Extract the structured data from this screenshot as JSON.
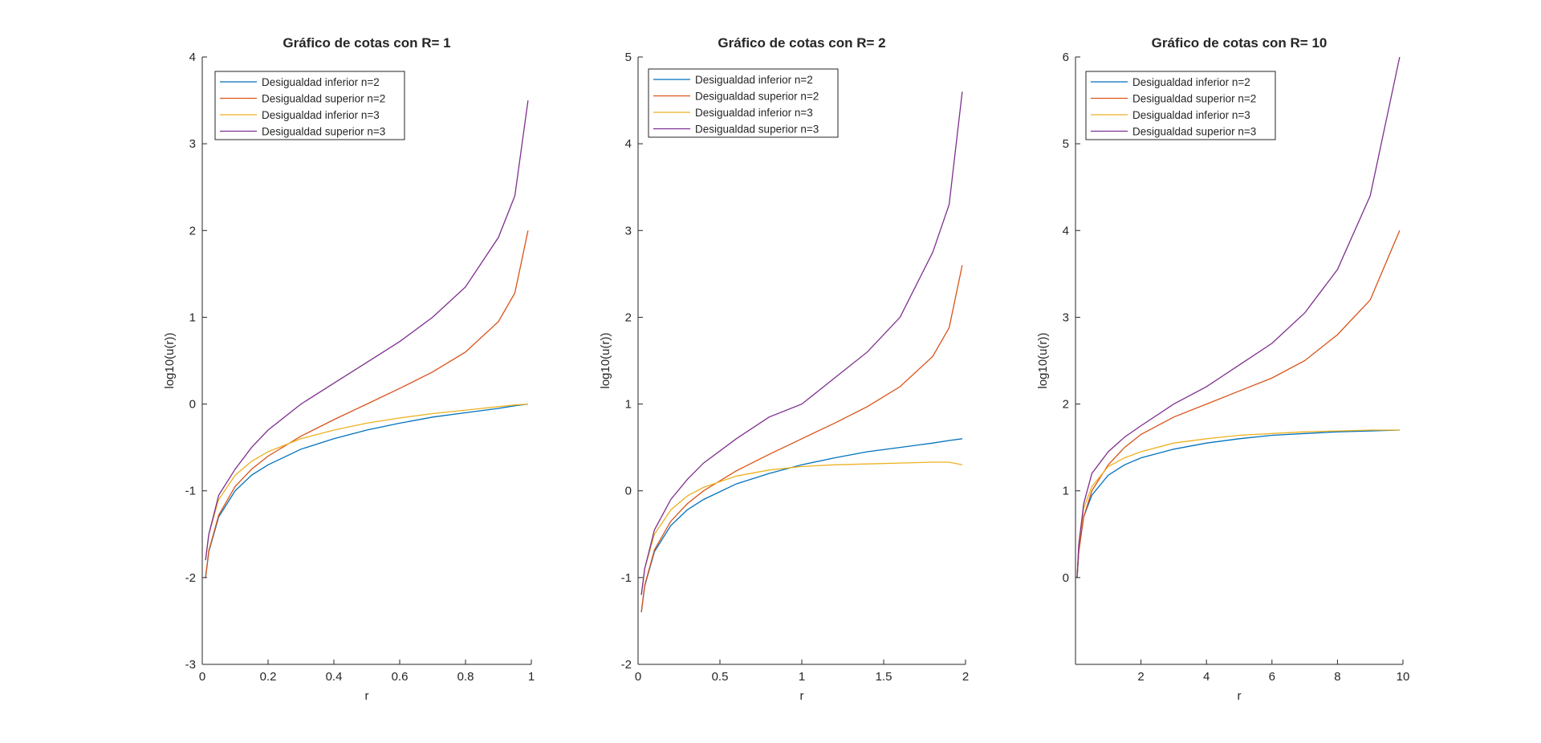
{
  "figure": {
    "background": "#ffffff"
  },
  "series_colors": [
    "#0072BD",
    "#D95319",
    "#EDB120",
    "#7E2F8E"
  ],
  "chart_data": [
    {
      "type": "line",
      "title": "Gráfico de cotas con R= 1",
      "xlabel": "r",
      "ylabel": "log10(u(r))",
      "xlim": [
        0,
        1
      ],
      "ylim": [
        -3,
        4
      ],
      "xticks": [
        "0",
        "0.2",
        "0.4",
        "0.6",
        "0.8",
        "1"
      ],
      "yticks": [
        "-3",
        "-2",
        "-1",
        "0",
        "1",
        "2",
        "3",
        "4"
      ],
      "grid": false,
      "legend_position": "top-left",
      "series": [
        {
          "name": "Desigualdad inferior n=2",
          "x": [
            0.01,
            0.02,
            0.05,
            0.1,
            0.15,
            0.2,
            0.3,
            0.4,
            0.5,
            0.6,
            0.7,
            0.8,
            0.9,
            0.95,
            0.99
          ],
          "y": [
            -2.0,
            -1.7,
            -1.3,
            -1.0,
            -0.82,
            -0.7,
            -0.52,
            -0.4,
            -0.3,
            -0.22,
            -0.15,
            -0.1,
            -0.05,
            -0.02,
            0.0
          ]
        },
        {
          "name": "Desigualdad superior n=2",
          "x": [
            0.01,
            0.02,
            0.05,
            0.1,
            0.15,
            0.2,
            0.3,
            0.4,
            0.5,
            0.6,
            0.7,
            0.8,
            0.9,
            0.95,
            0.99
          ],
          "y": [
            -2.0,
            -1.69,
            -1.28,
            -0.95,
            -0.75,
            -0.6,
            -0.37,
            -0.18,
            0.0,
            0.18,
            0.37,
            0.6,
            0.95,
            1.28,
            2.0
          ]
        },
        {
          "name": "Desigualdad inferior n=3",
          "x": [
            0.01,
            0.02,
            0.05,
            0.1,
            0.15,
            0.2,
            0.3,
            0.4,
            0.5,
            0.6,
            0.7,
            0.8,
            0.9,
            0.95,
            0.99
          ],
          "y": [
            -1.8,
            -1.5,
            -1.1,
            -0.82,
            -0.66,
            -0.55,
            -0.4,
            -0.3,
            -0.22,
            -0.16,
            -0.11,
            -0.07,
            -0.03,
            -0.01,
            0.0
          ]
        },
        {
          "name": "Desigualdad superior n=3",
          "x": [
            0.01,
            0.02,
            0.05,
            0.1,
            0.15,
            0.2,
            0.3,
            0.4,
            0.5,
            0.6,
            0.7,
            0.8,
            0.9,
            0.95,
            0.99
          ],
          "y": [
            -1.8,
            -1.5,
            -1.05,
            -0.75,
            -0.5,
            -0.3,
            0.0,
            0.24,
            0.48,
            0.72,
            1.0,
            1.35,
            1.92,
            2.4,
            3.5
          ]
        }
      ]
    },
    {
      "type": "line",
      "title": "Gráfico de cotas con R= 2",
      "xlabel": "r",
      "ylabel": "log10(u(r))",
      "xlim": [
        0,
        2
      ],
      "ylim": [
        -2,
        5
      ],
      "xticks": [
        "0",
        "0.5",
        "1",
        "1.5",
        "2"
      ],
      "yticks": [
        "-2",
        "-1",
        "0",
        "1",
        "2",
        "3",
        "4",
        "5"
      ],
      "grid": false,
      "legend_position": "top-left",
      "series": [
        {
          "name": "Desigualdad inferior n=2",
          "x": [
            0.02,
            0.04,
            0.1,
            0.2,
            0.3,
            0.4,
            0.6,
            0.8,
            1.0,
            1.2,
            1.4,
            1.6,
            1.8,
            1.9,
            1.98
          ],
          "y": [
            -1.4,
            -1.1,
            -0.7,
            -0.4,
            -0.22,
            -0.1,
            0.08,
            0.2,
            0.3,
            0.38,
            0.45,
            0.5,
            0.55,
            0.58,
            0.6
          ]
        },
        {
          "name": "Desigualdad superior n=2",
          "x": [
            0.02,
            0.04,
            0.1,
            0.2,
            0.3,
            0.4,
            0.6,
            0.8,
            1.0,
            1.2,
            1.4,
            1.6,
            1.8,
            1.9,
            1.98
          ],
          "y": [
            -1.4,
            -1.09,
            -0.68,
            -0.35,
            -0.15,
            0.0,
            0.23,
            0.42,
            0.6,
            0.78,
            0.97,
            1.2,
            1.55,
            1.88,
            2.6
          ]
        },
        {
          "name": "Desigualdad inferior n=3",
          "x": [
            0.02,
            0.04,
            0.1,
            0.2,
            0.3,
            0.4,
            0.6,
            0.8,
            1.0,
            1.2,
            1.4,
            1.6,
            1.8,
            1.9,
            1.98
          ],
          "y": [
            -1.2,
            -0.9,
            -0.5,
            -0.22,
            -0.06,
            0.04,
            0.17,
            0.24,
            0.28,
            0.3,
            0.31,
            0.32,
            0.33,
            0.33,
            0.3
          ]
        },
        {
          "name": "Desigualdad superior n=3",
          "x": [
            0.02,
            0.04,
            0.1,
            0.2,
            0.3,
            0.4,
            0.6,
            0.8,
            1.0,
            1.2,
            1.4,
            1.6,
            1.8,
            1.9,
            1.98
          ],
          "y": [
            -1.2,
            -0.9,
            -0.45,
            -0.1,
            0.13,
            0.32,
            0.6,
            0.85,
            1.0,
            1.3,
            1.6,
            2.0,
            2.75,
            3.3,
            4.6
          ]
        }
      ]
    },
    {
      "type": "line",
      "title": "Gráfico de cotas con R= 10",
      "xlabel": "r",
      "ylabel": "log10(u(r))",
      "xlim": [
        0,
        10
      ],
      "ylim": [
        -1,
        6
      ],
      "xticks": [
        "2",
        "4",
        "6",
        "8",
        "10"
      ],
      "yticks": [
        "0",
        "1",
        "2",
        "3",
        "4",
        "5",
        "6"
      ],
      "grid": false,
      "legend_position": "top-left",
      "series": [
        {
          "name": "Desigualdad inferior n=2",
          "x": [
            0.05,
            0.1,
            0.25,
            0.5,
            1.0,
            1.5,
            2.0,
            3.0,
            4.0,
            5.0,
            6.0,
            7.0,
            8.0,
            9.0,
            9.9
          ],
          "y": [
            0.0,
            0.3,
            0.7,
            0.95,
            1.18,
            1.3,
            1.38,
            1.48,
            1.55,
            1.6,
            1.64,
            1.66,
            1.68,
            1.69,
            1.7
          ]
        },
        {
          "name": "Desigualdad superior n=2",
          "x": [
            0.05,
            0.1,
            0.25,
            0.5,
            1.0,
            1.5,
            2.0,
            3.0,
            4.0,
            5.0,
            6.0,
            7.0,
            8.0,
            9.0,
            9.9
          ],
          "y": [
            0.0,
            0.3,
            0.7,
            1.0,
            1.3,
            1.5,
            1.65,
            1.85,
            2.0,
            2.15,
            2.3,
            2.5,
            2.8,
            3.2,
            4.0
          ]
        },
        {
          "name": "Desigualdad inferior n=3",
          "x": [
            0.05,
            0.1,
            0.25,
            0.5,
            1.0,
            1.5,
            2.0,
            3.0,
            4.0,
            5.0,
            6.0,
            7.0,
            8.0,
            9.0,
            9.9
          ],
          "y": [
            0.0,
            0.38,
            0.8,
            1.05,
            1.28,
            1.38,
            1.45,
            1.55,
            1.6,
            1.64,
            1.66,
            1.68,
            1.69,
            1.7,
            1.7
          ]
        },
        {
          "name": "Desigualdad superior n=3",
          "x": [
            0.05,
            0.1,
            0.25,
            0.5,
            1.0,
            1.5,
            2.0,
            3.0,
            4.0,
            5.0,
            6.0,
            7.0,
            8.0,
            9.0,
            9.9
          ],
          "y": [
            0.0,
            0.38,
            0.85,
            1.2,
            1.45,
            1.62,
            1.75,
            2.0,
            2.2,
            2.45,
            2.7,
            3.05,
            3.55,
            4.4,
            6.0
          ]
        }
      ]
    }
  ]
}
